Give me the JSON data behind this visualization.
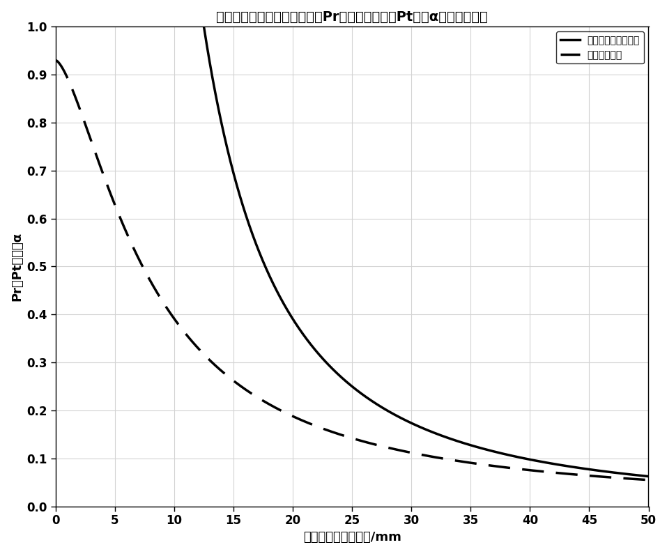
{
  "title": "由金属板反射后接收到的功率Pr与逆向辐射功率Pt之比α随距离的变化",
  "xlabel": "天线与金属板的距离/mm",
  "ylabel": "Pr与Pt的比值α",
  "xlim": [
    0,
    50
  ],
  "ylim": [
    0,
    1
  ],
  "xticks": [
    0,
    5,
    10,
    15,
    20,
    25,
    30,
    35,
    40,
    45,
    50
  ],
  "yticks": [
    0,
    0.1,
    0.2,
    0.3,
    0.4,
    0.5,
    0.6,
    0.7,
    0.8,
    0.9,
    1
  ],
  "legend_solid": "弗里斯公式计算结果",
  "legend_dashed": "电磁仿真结果",
  "friis_d0": 12.5,
  "em_c": 7.5,
  "em_scale": 0.93,
  "background_color": "#ffffff",
  "line_color": "#000000",
  "title_fontsize": 14,
  "label_fontsize": 13,
  "tick_fontsize": 12,
  "legend_fontsize": 13,
  "line_width": 2.5
}
